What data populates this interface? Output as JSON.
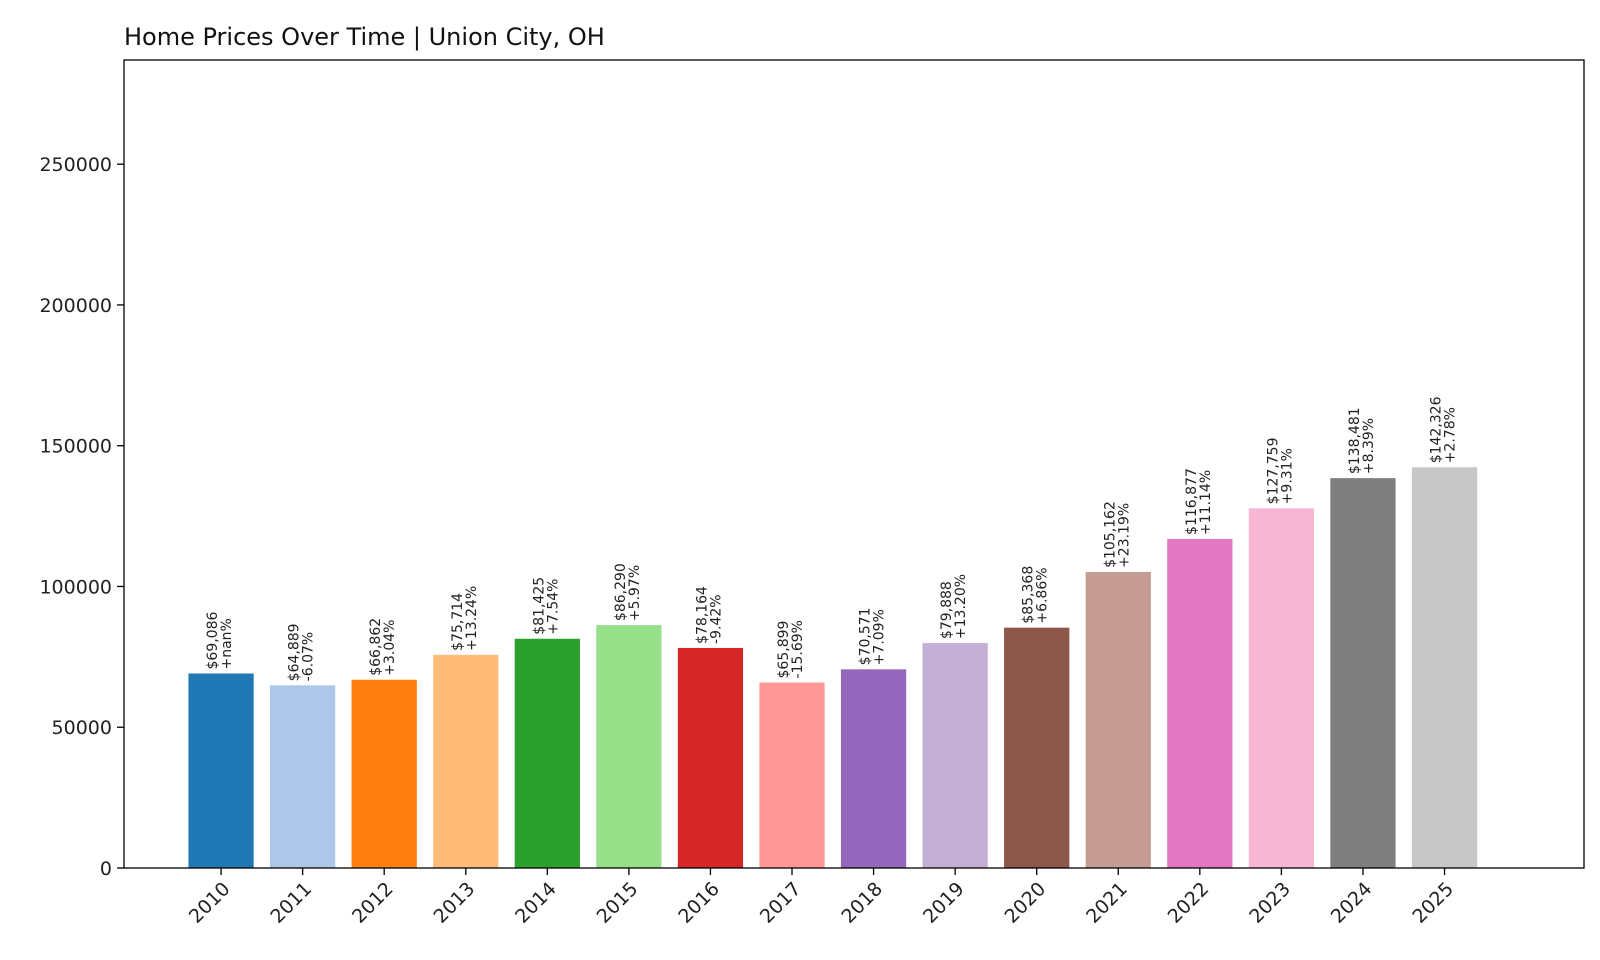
{
  "chart_data": {
    "type": "bar",
    "title": "Home Prices Over Time | Union City, OH",
    "xlabel": "",
    "ylabel": "",
    "ylim": [
      0,
      287000
    ],
    "yticks": [
      "0",
      "50000",
      "100000",
      "150000",
      "200000",
      "250000"
    ],
    "categories": [
      "2010",
      "2011",
      "2012",
      "2013",
      "2014",
      "2015",
      "2016",
      "2017",
      "2018",
      "2019",
      "2020",
      "2021",
      "2022",
      "2023",
      "2024",
      "2025"
    ],
    "values": [
      69086,
      64889,
      66862,
      75714,
      81425,
      86290,
      78164,
      65899,
      70571,
      79888,
      85368,
      105162,
      116877,
      127759,
      138481,
      142326
    ],
    "value_labels": [
      "$69,086",
      "$64,889",
      "$66,862",
      "$75,714",
      "$81,425",
      "$86,290",
      "$78,164",
      "$65,899",
      "$70,571",
      "$79,888",
      "$85,368",
      "$105,162",
      "$116,877",
      "$127,759",
      "$138,481",
      "$142,326"
    ],
    "change_labels": [
      "+nan%",
      "-6.07%",
      "+3.04%",
      "+13.24%",
      "+7.54%",
      "+5.97%",
      "-9.42%",
      "-15.69%",
      "+7.09%",
      "+13.20%",
      "+6.86%",
      "+23.19%",
      "+11.14%",
      "+9.31%",
      "+8.39%",
      "+2.78%"
    ],
    "colors": [
      "#1f77b4",
      "#aec7e8",
      "#ff7f0e",
      "#ffbb78",
      "#2ca02c",
      "#98df8a",
      "#d62728",
      "#ff9896",
      "#9467bd",
      "#c5b0d5",
      "#8c564b",
      "#c49c94",
      "#e377c2",
      "#f7b6d2",
      "#7f7f7f",
      "#c7c7c7"
    ],
    "grid": false,
    "legend": "none"
  }
}
